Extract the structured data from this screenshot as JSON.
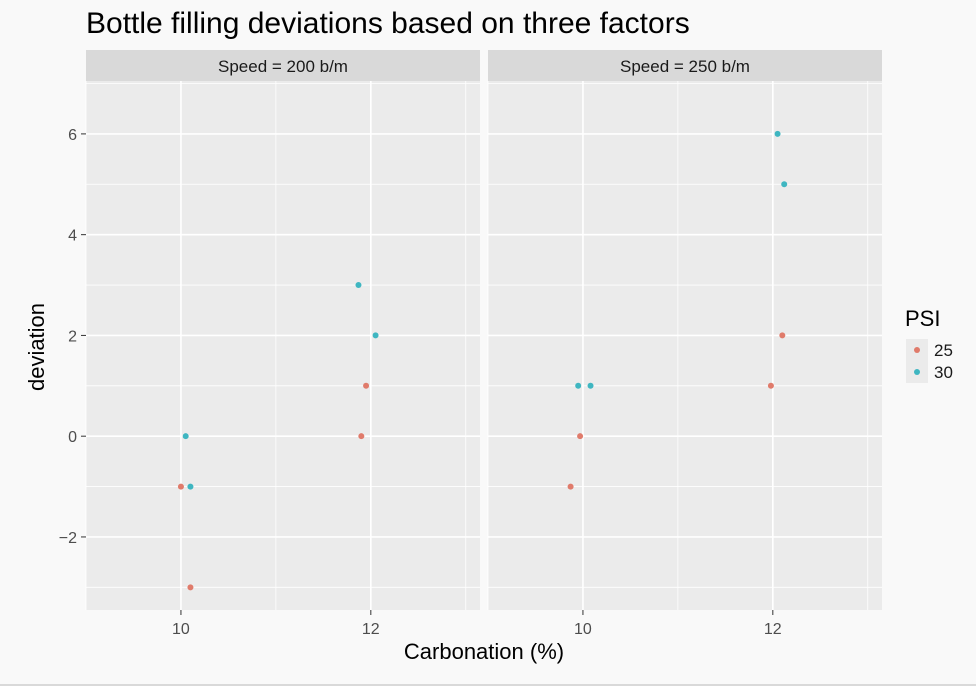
{
  "chart_data": {
    "type": "scatter",
    "title": "Bottle filling deviations based on three factors",
    "xlabel": "Carbonation (%)",
    "ylabel": "deviation",
    "xlim": [
      9,
      13.15
    ],
    "ylim": [
      -3.45,
      7.05
    ],
    "x_ticks": [
      10,
      12
    ],
    "y_ticks": [
      -2,
      0,
      2,
      4,
      6
    ],
    "y_tick_labels": [
      "−2",
      "0",
      "2",
      "4",
      "6"
    ],
    "grid": true,
    "facets": [
      {
        "label": "Speed = 200 b/m",
        "series": [
          {
            "name": "25",
            "points": [
              [
                10.0,
                -1
              ],
              [
                10.1,
                -3
              ],
              [
                11.9,
                0
              ],
              [
                11.95,
                1
              ]
            ]
          },
          {
            "name": "30",
            "points": [
              [
                10.05,
                0
              ],
              [
                10.1,
                -1
              ],
              [
                11.87,
                3
              ],
              [
                12.05,
                2
              ]
            ]
          }
        ]
      },
      {
        "label": "Speed = 250 b/m",
        "series": [
          {
            "name": "25",
            "points": [
              [
                9.87,
                -1
              ],
              [
                9.97,
                0
              ],
              [
                11.98,
                1
              ],
              [
                12.1,
                2
              ]
            ]
          },
          {
            "name": "30",
            "points": [
              [
                9.95,
                1
              ],
              [
                10.08,
                1
              ],
              [
                12.05,
                6
              ],
              [
                12.12,
                5
              ]
            ]
          }
        ]
      }
    ],
    "legend": {
      "title": "PSI",
      "placement": "right",
      "entries": [
        {
          "label": "25",
          "color": "#e07b6b"
        },
        {
          "label": "30",
          "color": "#3fb6c1"
        }
      ]
    }
  },
  "colors": {
    "panel_bg": "#ebebeb",
    "strip_bg": "#d9d9d9",
    "grid": "#ffffff",
    "text": "#000000",
    "tick_text": "#4d4d4d"
  }
}
